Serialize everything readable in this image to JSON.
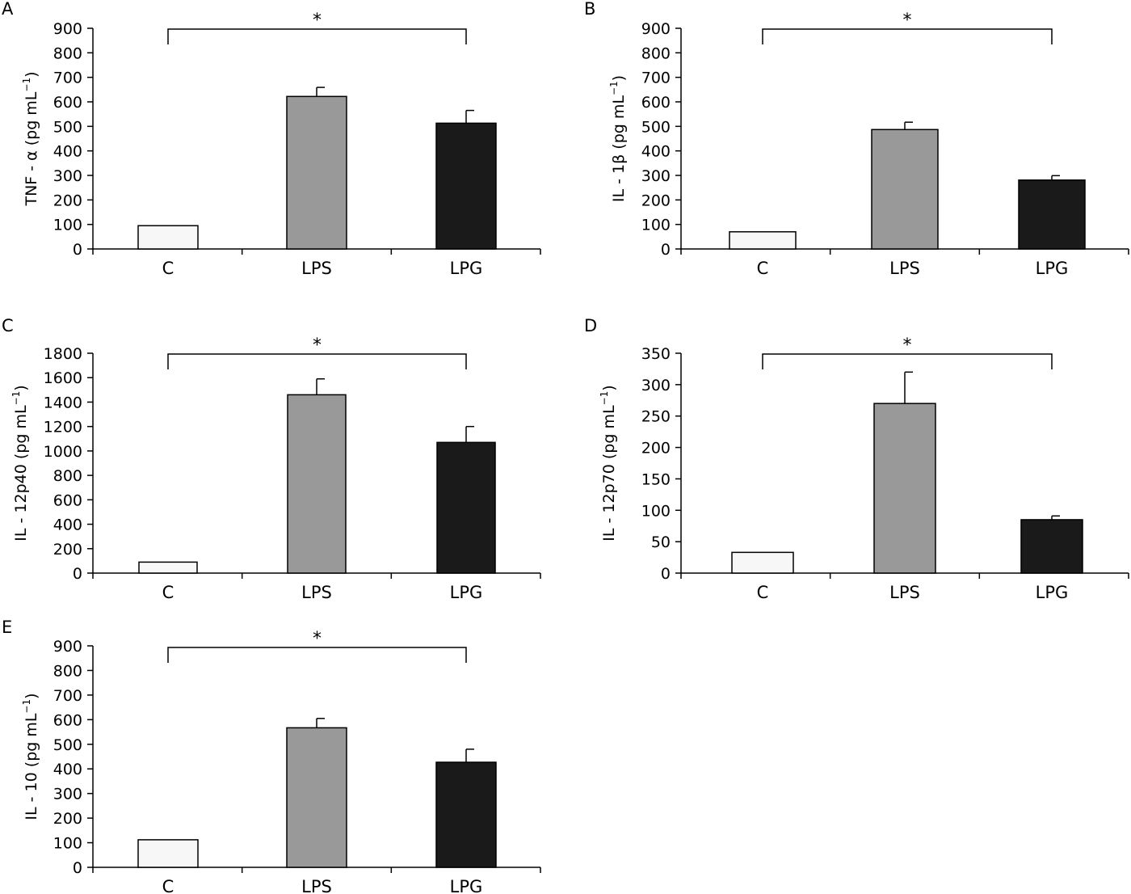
{
  "figure": {
    "fill_colors": [
      "#f7f7f7",
      "#999999",
      "#1a1a1a"
    ],
    "stroke_color": "#000000"
  },
  "chart_data": [
    {
      "type": "bar",
      "panel": "A",
      "ylabel": "TNF - α (pg mL",
      "ylabel_sup": "−1",
      "ylabel_close": ")",
      "categories": [
        "C",
        "LPS",
        "LPG"
      ],
      "values": [
        95,
        622,
        513
      ],
      "errors": [
        0,
        37,
        52
      ],
      "ylim": [
        0,
        900
      ],
      "yticks": [
        0,
        100,
        200,
        300,
        400,
        500,
        600,
        700,
        800,
        900
      ],
      "significance": {
        "from": "C",
        "to": "LPG",
        "label": "*"
      }
    },
    {
      "type": "bar",
      "panel": "B",
      "ylabel": "IL - 1β (pg mL",
      "ylabel_sup": "−1",
      "ylabel_close": ")",
      "categories": [
        "C",
        "LPS",
        "LPG"
      ],
      "values": [
        70,
        487,
        281
      ],
      "errors": [
        0,
        30,
        18
      ],
      "ylim": [
        0,
        900
      ],
      "yticks": [
        0,
        100,
        200,
        300,
        400,
        500,
        600,
        700,
        800,
        900
      ],
      "significance": {
        "from": "C",
        "to": "LPG",
        "label": "*"
      }
    },
    {
      "type": "bar",
      "panel": "C",
      "ylabel": "IL - 12p40 (pg mL",
      "ylabel_sup": "−1",
      "ylabel_close": ")",
      "categories": [
        "C",
        "LPS",
        "LPG"
      ],
      "values": [
        90,
        1460,
        1070
      ],
      "errors": [
        0,
        130,
        130
      ],
      "ylim": [
        0,
        1800
      ],
      "yticks": [
        0,
        200,
        400,
        600,
        800,
        1000,
        1200,
        1400,
        1600,
        1800
      ],
      "significance": {
        "from": "C",
        "to": "LPG",
        "label": "*"
      }
    },
    {
      "type": "bar",
      "panel": "D",
      "ylabel": "IL - 12p70 (pg mL",
      "ylabel_sup": "−1",
      "ylabel_close": ")",
      "categories": [
        "C",
        "LPS",
        "LPG"
      ],
      "values": [
        33,
        270,
        85
      ],
      "errors": [
        0,
        50,
        6
      ],
      "ylim": [
        0,
        350
      ],
      "yticks": [
        0,
        50,
        100,
        150,
        200,
        250,
        300,
        350
      ],
      "significance": {
        "from": "C",
        "to": "LPG",
        "label": "*"
      }
    },
    {
      "type": "bar",
      "panel": "E",
      "ylabel": "IL - 10 (pg mL",
      "ylabel_sup": "−1",
      "ylabel_close": ")",
      "categories": [
        "C",
        "LPS",
        "LPG"
      ],
      "values": [
        112,
        567,
        427
      ],
      "errors": [
        0,
        38,
        53
      ],
      "ylim": [
        0,
        900
      ],
      "yticks": [
        0,
        100,
        200,
        300,
        400,
        500,
        600,
        700,
        800,
        900
      ],
      "significance": {
        "from": "C",
        "to": "LPG",
        "label": "*"
      }
    }
  ]
}
